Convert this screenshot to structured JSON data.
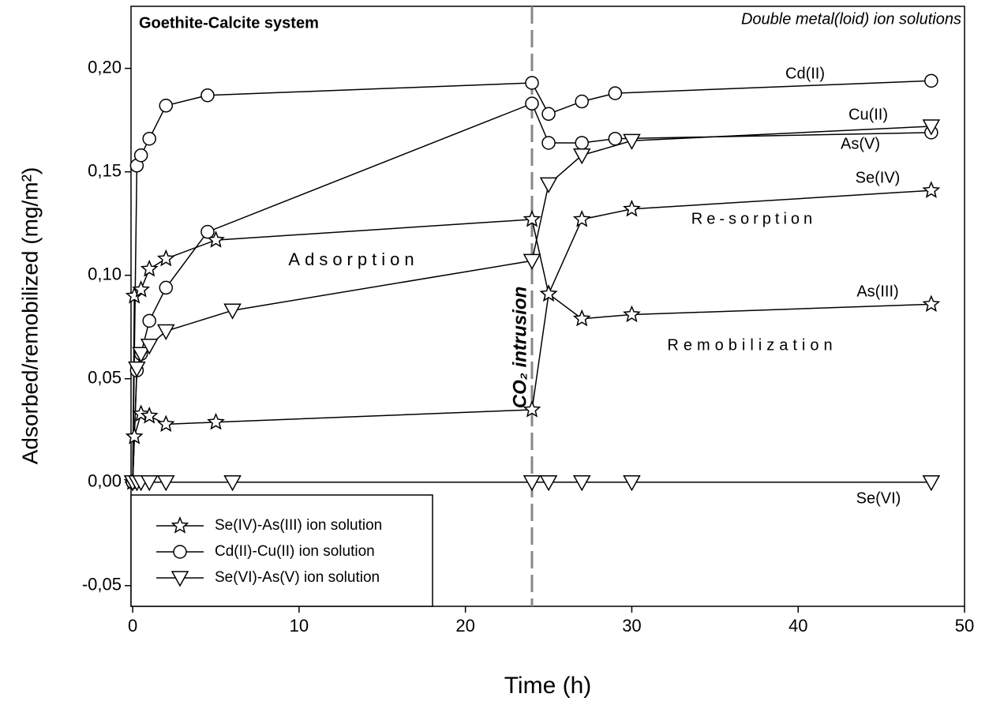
{
  "chart_data": {
    "type": "line",
    "xlabel": "Time (h)",
    "ylabel": "Adsorbed/remobilized (mg/m²)",
    "xlim": [
      -0.1,
      50
    ],
    "ylim": [
      -0.06,
      0.23
    ],
    "xticks": [
      0,
      10,
      20,
      30,
      40,
      50
    ],
    "yticks": [
      {
        "value": -0.05,
        "label": "-0,05"
      },
      {
        "value": 0,
        "label": "0,00"
      },
      {
        "value": 0.05,
        "label": "0,05"
      },
      {
        "value": 0.1,
        "label": "0,10"
      },
      {
        "value": 0.15,
        "label": "0,15"
      },
      {
        "value": 0.2,
        "label": "0,20"
      }
    ],
    "vline_x": 24,
    "series": [
      {
        "name": "As(III)",
        "marker": "star",
        "color": "#000000",
        "x": [
          0,
          0.1,
          0.5,
          1,
          2,
          5,
          24,
          25,
          27,
          30,
          48
        ],
        "values": [
          0,
          0.09,
          0.093,
          0.103,
          0.108,
          0.117,
          0.127,
          0.091,
          0.079,
          0.081,
          0.086
        ]
      },
      {
        "name": "Se(IV)",
        "marker": "star",
        "color": "#000000",
        "x": [
          0,
          0.1,
          0.5,
          1,
          2,
          5,
          24,
          25,
          27,
          30,
          48
        ],
        "values": [
          0,
          0.022,
          0.033,
          0.032,
          0.028,
          0.029,
          0.035,
          0.091,
          0.127,
          0.132,
          0.141
        ]
      },
      {
        "name": "Cd(II)",
        "marker": "circle",
        "color": "#000000",
        "x": [
          0,
          0.25,
          0.5,
          1,
          2,
          4.5,
          24,
          25,
          27,
          29,
          48
        ],
        "values": [
          0,
          0.153,
          0.158,
          0.166,
          0.182,
          0.187,
          0.193,
          0.178,
          0.184,
          0.188,
          0.194
        ]
      },
      {
        "name": "Cu(II)",
        "marker": "circle",
        "color": "#000000",
        "x": [
          0,
          0.25,
          0.5,
          1,
          2,
          4.5,
          24,
          25,
          27,
          29,
          48
        ],
        "values": [
          0,
          0.054,
          0.062,
          0.078,
          0.094,
          0.121,
          0.183,
          0.164,
          0.164,
          0.166,
          0.169
        ]
      },
      {
        "name": "As(V)",
        "marker": "triangle",
        "color": "#000000",
        "x": [
          0,
          0.25,
          0.5,
          1,
          2,
          6,
          24,
          25,
          27,
          30,
          48
        ],
        "values": [
          0,
          0.055,
          0.062,
          0.066,
          0.073,
          0.083,
          0.107,
          0.144,
          0.158,
          0.165,
          0.172
        ]
      },
      {
        "name": "Se(VI)",
        "marker": "triangle",
        "color": "#000000",
        "x": [
          0,
          0.25,
          0.5,
          1,
          2,
          6,
          24,
          25,
          27,
          30,
          48
        ],
        "values": [
          0,
          0,
          0,
          0,
          0,
          0,
          0,
          0,
          0,
          0,
          0
        ]
      }
    ],
    "legend": [
      {
        "label": "Se(IV)-As(III) ion solution",
        "marker": "star"
      },
      {
        "label": "Cd(II)-Cu(II) ion solution",
        "marker": "circle"
      },
      {
        "label": "Se(VI)-As(V) ion solution",
        "marker": "triangle"
      }
    ],
    "annotations": [
      "Goethite-Calcite system",
      "Double metal(loid) ion solutions",
      "Adsorption",
      "Re-sorption",
      "Remobilization",
      "CO₂ intrusion"
    ]
  }
}
